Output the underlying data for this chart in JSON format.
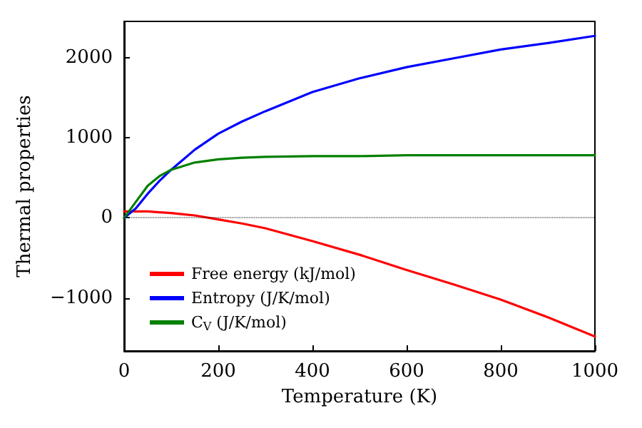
{
  "chart_data": {
    "type": "line",
    "xlabel": "Temperature (K)",
    "ylabel": "Thermal properties",
    "x": [
      0,
      25,
      50,
      75,
      100,
      150,
      200,
      250,
      300,
      400,
      500,
      600,
      700,
      800,
      900,
      1000
    ],
    "series": [
      {
        "name": "Free energy (kJ/mol)",
        "color": "#ff0000",
        "values": [
          80,
          80,
          80,
          70,
          60,
          30,
          -20,
          -70,
          -130,
          -290,
          -460,
          -650,
          -830,
          -1020,
          -1240,
          -1480
        ]
      },
      {
        "name": "Entropy (J/K/mol)",
        "color": "#0000ff",
        "values": [
          0,
          120,
          300,
          460,
          600,
          850,
          1050,
          1200,
          1330,
          1570,
          1740,
          1880,
          1990,
          2100,
          2180,
          2270
        ]
      },
      {
        "name": "C$_{V}$ (J/K/mol)",
        "color": "#008000",
        "values": [
          0,
          200,
          400,
          520,
          600,
          690,
          730,
          750,
          760,
          770,
          770,
          780,
          780,
          780,
          780,
          780
        ]
      }
    ],
    "xlim": [
      0,
      1000
    ],
    "xticks": [
      0,
      200,
      400,
      600,
      800,
      1000
    ],
    "ylim": [
      -1660,
      2450
    ],
    "yticks": [
      -1000,
      0,
      1000,
      2000
    ],
    "ref_lines": [
      {
        "axis": "y",
        "value": 0,
        "color": "#000000",
        "line_style": "dotted"
      }
    ],
    "legend": "bottom left",
    "grid": false,
    "marker": "none",
    "line_style": "solid"
  }
}
